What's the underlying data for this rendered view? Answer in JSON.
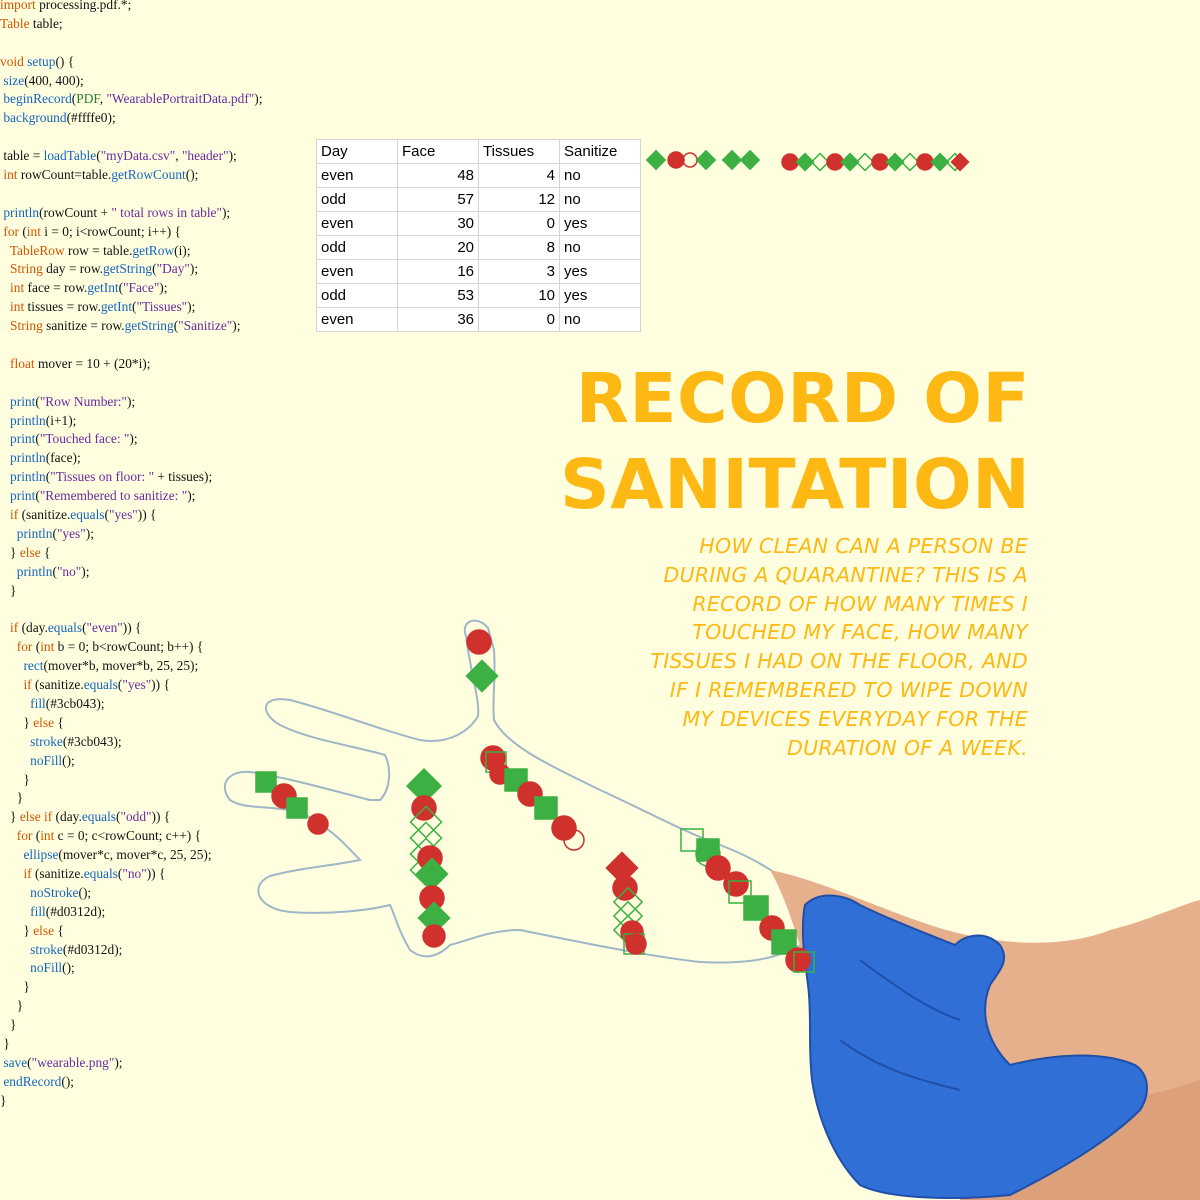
{
  "code_lines": [
    [
      [
        "kw",
        "import"
      ],
      [
        "dim",
        " processing.pdf.*;"
      ]
    ],
    [
      [
        "kw",
        "Table"
      ],
      [
        "dim",
        " table;"
      ]
    ],
    [
      [
        "dim",
        ""
      ]
    ],
    [
      [
        "kw",
        "void"
      ],
      [
        "dim",
        " "
      ],
      [
        "fn",
        "setup"
      ],
      [
        "dim",
        "() {"
      ]
    ],
    [
      [
        "dim",
        " "
      ],
      [
        "fn",
        "size"
      ],
      [
        "dim",
        "(400, 400);"
      ]
    ],
    [
      [
        "dim",
        " "
      ],
      [
        "fn",
        "beginRecord"
      ],
      [
        "dim",
        "("
      ],
      [
        "ty",
        "PDF"
      ],
      [
        "dim",
        ", "
      ],
      [
        "st",
        "\"WearablePortraitData.pdf\""
      ],
      [
        "dim",
        ");"
      ]
    ],
    [
      [
        "dim",
        " "
      ],
      [
        "fn",
        "background"
      ],
      [
        "dim",
        "(#ffffe0);"
      ]
    ],
    [
      [
        "dim",
        ""
      ]
    ],
    [
      [
        "dim",
        " table = "
      ],
      [
        "fn",
        "loadTable"
      ],
      [
        "dim",
        "("
      ],
      [
        "st",
        "\"myData.csv\""
      ],
      [
        "dim",
        ", "
      ],
      [
        "st",
        "\"header\""
      ],
      [
        "dim",
        ");"
      ]
    ],
    [
      [
        "dim",
        " "
      ],
      [
        "kw",
        "int"
      ],
      [
        "dim",
        " rowCount=table."
      ],
      [
        "fn",
        "getRowCount"
      ],
      [
        "dim",
        "();"
      ]
    ],
    [
      [
        "dim",
        ""
      ]
    ],
    [
      [
        "dim",
        " "
      ],
      [
        "fn",
        "println"
      ],
      [
        "dim",
        "(rowCount + "
      ],
      [
        "st",
        "\" total rows in table\""
      ],
      [
        "dim",
        ");"
      ]
    ],
    [
      [
        "dim",
        " "
      ],
      [
        "kw",
        "for"
      ],
      [
        "dim",
        " ("
      ],
      [
        "kw",
        "int"
      ],
      [
        "dim",
        " i = 0; i<rowCount; i++) {"
      ]
    ],
    [
      [
        "dim",
        "   "
      ],
      [
        "kw",
        "TableRow"
      ],
      [
        "dim",
        " row = table."
      ],
      [
        "fn",
        "getRow"
      ],
      [
        "dim",
        "(i);"
      ]
    ],
    [
      [
        "dim",
        "   "
      ],
      [
        "kw",
        "String"
      ],
      [
        "dim",
        " day = row."
      ],
      [
        "fn",
        "getString"
      ],
      [
        "dim",
        "("
      ],
      [
        "st",
        "\"Day\""
      ],
      [
        "dim",
        ");"
      ]
    ],
    [
      [
        "dim",
        "   "
      ],
      [
        "kw",
        "int"
      ],
      [
        "dim",
        " face = row."
      ],
      [
        "fn",
        "getInt"
      ],
      [
        "dim",
        "("
      ],
      [
        "st",
        "\"Face\""
      ],
      [
        "dim",
        ");"
      ]
    ],
    [
      [
        "dim",
        "   "
      ],
      [
        "kw",
        "int"
      ],
      [
        "dim",
        " tissues = row."
      ],
      [
        "fn",
        "getInt"
      ],
      [
        "dim",
        "("
      ],
      [
        "st",
        "\"Tissues\""
      ],
      [
        "dim",
        ");"
      ]
    ],
    [
      [
        "dim",
        "   "
      ],
      [
        "kw",
        "String"
      ],
      [
        "dim",
        " sanitize = row."
      ],
      [
        "fn",
        "getString"
      ],
      [
        "dim",
        "("
      ],
      [
        "st",
        "\"Sanitize\""
      ],
      [
        "dim",
        ");"
      ]
    ],
    [
      [
        "dim",
        ""
      ]
    ],
    [
      [
        "dim",
        "   "
      ],
      [
        "kw",
        "float"
      ],
      [
        "dim",
        " mover = 10 + (20*i);"
      ]
    ],
    [
      [
        "dim",
        ""
      ]
    ],
    [
      [
        "dim",
        "   "
      ],
      [
        "fn",
        "print"
      ],
      [
        "dim",
        "("
      ],
      [
        "st",
        "\"Row Number:\""
      ],
      [
        "dim",
        ");"
      ]
    ],
    [
      [
        "dim",
        "   "
      ],
      [
        "fn",
        "println"
      ],
      [
        "dim",
        "(i+1);"
      ]
    ],
    [
      [
        "dim",
        "   "
      ],
      [
        "fn",
        "print"
      ],
      [
        "dim",
        "("
      ],
      [
        "st",
        "\"Touched face: \""
      ],
      [
        "dim",
        ");"
      ]
    ],
    [
      [
        "dim",
        "   "
      ],
      [
        "fn",
        "println"
      ],
      [
        "dim",
        "(face);"
      ]
    ],
    [
      [
        "dim",
        "   "
      ],
      [
        "fn",
        "println"
      ],
      [
        "dim",
        "("
      ],
      [
        "st",
        "\"Tissues on floor: \""
      ],
      [
        "dim",
        " + tissues);"
      ]
    ],
    [
      [
        "dim",
        "   "
      ],
      [
        "fn",
        "print"
      ],
      [
        "dim",
        "("
      ],
      [
        "st",
        "\"Remembered to sanitize: \""
      ],
      [
        "dim",
        ");"
      ]
    ],
    [
      [
        "dim",
        "   "
      ],
      [
        "kw",
        "if"
      ],
      [
        "dim",
        " (sanitize."
      ],
      [
        "fn",
        "equals"
      ],
      [
        "dim",
        "("
      ],
      [
        "st",
        "\"yes\""
      ],
      [
        "dim",
        ")) {"
      ]
    ],
    [
      [
        "dim",
        "     "
      ],
      [
        "fn",
        "println"
      ],
      [
        "dim",
        "("
      ],
      [
        "st",
        "\"yes\""
      ],
      [
        "dim",
        ");"
      ]
    ],
    [
      [
        "dim",
        "   } "
      ],
      [
        "kw",
        "else"
      ],
      [
        "dim",
        " {"
      ]
    ],
    [
      [
        "dim",
        "     "
      ],
      [
        "fn",
        "println"
      ],
      [
        "dim",
        "("
      ],
      [
        "st",
        "\"no\""
      ],
      [
        "dim",
        ");"
      ]
    ],
    [
      [
        "dim",
        "   }"
      ]
    ],
    [
      [
        "dim",
        ""
      ]
    ],
    [
      [
        "dim",
        "   "
      ],
      [
        "kw",
        "if"
      ],
      [
        "dim",
        " (day."
      ],
      [
        "fn",
        "equals"
      ],
      [
        "dim",
        "("
      ],
      [
        "st",
        "\"even\""
      ],
      [
        "dim",
        ")) {"
      ]
    ],
    [
      [
        "dim",
        "     "
      ],
      [
        "kw",
        "for"
      ],
      [
        "dim",
        " ("
      ],
      [
        "kw",
        "int"
      ],
      [
        "dim",
        " b = 0; b<rowCount; b++) {"
      ]
    ],
    [
      [
        "dim",
        "       "
      ],
      [
        "fn",
        "rect"
      ],
      [
        "dim",
        "(mover*b, mover*b, 25, 25);"
      ]
    ],
    [
      [
        "dim",
        "       "
      ],
      [
        "kw",
        "if"
      ],
      [
        "dim",
        " (sanitize."
      ],
      [
        "fn",
        "equals"
      ],
      [
        "dim",
        "("
      ],
      [
        "st",
        "\"yes\""
      ],
      [
        "dim",
        ")) {"
      ]
    ],
    [
      [
        "dim",
        "         "
      ],
      [
        "fn",
        "fill"
      ],
      [
        "dim",
        "(#3cb043);"
      ]
    ],
    [
      [
        "dim",
        "       } "
      ],
      [
        "kw",
        "else"
      ],
      [
        "dim",
        " {"
      ]
    ],
    [
      [
        "dim",
        "         "
      ],
      [
        "fn",
        "stroke"
      ],
      [
        "dim",
        "(#3cb043);"
      ]
    ],
    [
      [
        "dim",
        "         "
      ],
      [
        "fn",
        "noFill"
      ],
      [
        "dim",
        "();"
      ]
    ],
    [
      [
        "dim",
        "       }"
      ]
    ],
    [
      [
        "dim",
        "     }"
      ]
    ],
    [
      [
        "dim",
        "   } "
      ],
      [
        "kw",
        "else if"
      ],
      [
        "dim",
        " (day."
      ],
      [
        "fn",
        "equals"
      ],
      [
        "dim",
        "("
      ],
      [
        "st",
        "\"odd\""
      ],
      [
        "dim",
        ")) {"
      ]
    ],
    [
      [
        "dim",
        "     "
      ],
      [
        "kw",
        "for"
      ],
      [
        "dim",
        " ("
      ],
      [
        "kw",
        "int"
      ],
      [
        "dim",
        " c = 0; c<rowCount; c++) {"
      ]
    ],
    [
      [
        "dim",
        "       "
      ],
      [
        "fn",
        "ellipse"
      ],
      [
        "dim",
        "(mover*c, mover*c, 25, 25);"
      ]
    ],
    [
      [
        "dim",
        "       "
      ],
      [
        "kw",
        "if"
      ],
      [
        "dim",
        " (sanitize."
      ],
      [
        "fn",
        "equals"
      ],
      [
        "dim",
        "("
      ],
      [
        "st",
        "\"no\""
      ],
      [
        "dim",
        ")) {"
      ]
    ],
    [
      [
        "dim",
        "         "
      ],
      [
        "fn",
        "noStroke"
      ],
      [
        "dim",
        "();"
      ]
    ],
    [
      [
        "dim",
        "         "
      ],
      [
        "fn",
        "fill"
      ],
      [
        "dim",
        "(#d0312d);"
      ]
    ],
    [
      [
        "dim",
        "       } "
      ],
      [
        "kw",
        "else"
      ],
      [
        "dim",
        " {"
      ]
    ],
    [
      [
        "dim",
        "         "
      ],
      [
        "fn",
        "stroke"
      ],
      [
        "dim",
        "(#d0312d);"
      ]
    ],
    [
      [
        "dim",
        "         "
      ],
      [
        "fn",
        "noFill"
      ],
      [
        "dim",
        "();"
      ]
    ],
    [
      [
        "dim",
        "       }"
      ]
    ],
    [
      [
        "dim",
        "     }"
      ]
    ],
    [
      [
        "dim",
        "   }"
      ]
    ],
    [
      [
        "dim",
        " }"
      ]
    ],
    [
      [
        "dim",
        " "
      ],
      [
        "fn",
        "save"
      ],
      [
        "dim",
        "("
      ],
      [
        "st",
        "\"wearable.png\""
      ],
      [
        "dim",
        ");"
      ]
    ],
    [
      [
        "dim",
        " "
      ],
      [
        "fn",
        "endRecord"
      ],
      [
        "dim",
        "();"
      ]
    ],
    [
      [
        "dim",
        "}"
      ]
    ]
  ],
  "table": {
    "headers": [
      "Day",
      "Face",
      "Tissues",
      "Sanitize"
    ],
    "rows": [
      [
        "even",
        "48",
        "4",
        "no"
      ],
      [
        "odd",
        "57",
        "12",
        "no"
      ],
      [
        "even",
        "30",
        "0",
        "yes"
      ],
      [
        "odd",
        "20",
        "8",
        "no"
      ],
      [
        "even",
        "16",
        "3",
        "yes"
      ],
      [
        "odd",
        "53",
        "10",
        "yes"
      ],
      [
        "even",
        "36",
        "0",
        "no"
      ]
    ]
  },
  "title": {
    "line1": "RECORD OF",
    "line2": "SANITATION"
  },
  "subtitle_lines": [
    "HOW CLEAN CAN A PERSON BE",
    "DURING A QUARANTINE? THIS IS A",
    "RECORD OF HOW MANY TIMES I",
    "TOUCHED MY FACE, HOW MANY",
    "TISSUES I HAD ON THE FLOOR, AND",
    "IF I REMEMBERED TO WIPE DOWN",
    "MY DEVICES EVERYDAY FOR THE",
    "DURATION OF A WEEK."
  ],
  "colors": {
    "background": "#ffffe0",
    "green": "#3cb043",
    "red": "#d0312d",
    "title": "#fdb813",
    "glove": "#2f6fd6",
    "skin": "#e7b08c"
  },
  "icons": [
    "hand-outline",
    "blue-glove-hand",
    "data-marks"
  ]
}
